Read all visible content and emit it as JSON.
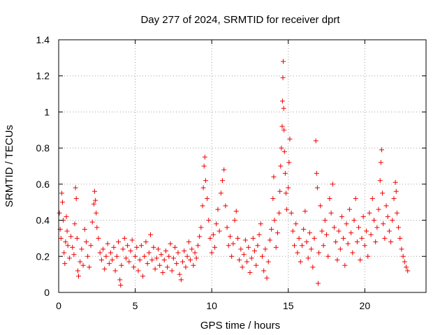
{
  "chart_data": {
    "type": "scatter",
    "title": "Day 277 of 2024, SRMTID for receiver dprt",
    "xlabel": "GPS time / hours",
    "ylabel": "SRMTID / TECUs",
    "xlim": [
      0,
      24
    ],
    "ylim": [
      0,
      1.4
    ],
    "xticks": [
      0,
      5,
      10,
      15,
      20
    ],
    "xtick_labels": [
      "0",
      "5",
      "10",
      "15",
      "20"
    ],
    "yticks": [
      0,
      0.2,
      0.4,
      0.6,
      0.8,
      1,
      1.2,
      1.4
    ],
    "ytick_labels": [
      "0",
      "0.2",
      "0.4",
      "0.6",
      "0.8",
      "1",
      "1.2",
      "1.4"
    ],
    "grid": true,
    "marker": "+",
    "marker_color": "#ee0000",
    "series": [
      {
        "name": "SRMTID",
        "points": [
          [
            0.05,
            0.44
          ],
          [
            0.1,
            0.35
          ],
          [
            0.15,
            0.3
          ],
          [
            0.2,
            0.55
          ],
          [
            0.25,
            0.5
          ],
          [
            0.3,
            0.4
          ],
          [
            0.35,
            0.22
          ],
          [
            0.4,
            0.16
          ],
          [
            0.45,
            0.28
          ],
          [
            0.5,
            0.42
          ],
          [
            0.55,
            0.34
          ],
          [
            0.6,
            0.26
          ],
          [
            0.7,
            0.19
          ],
          [
            0.8,
            0.31
          ],
          [
            0.9,
            0.25
          ],
          [
            1.0,
            0.21
          ],
          [
            1.05,
            0.38
          ],
          [
            1.1,
            0.58
          ],
          [
            1.15,
            0.52
          ],
          [
            1.2,
            0.3
          ],
          [
            1.25,
            0.12
          ],
          [
            1.3,
            0.09
          ],
          [
            1.4,
            0.17
          ],
          [
            1.5,
            0.24
          ],
          [
            1.6,
            0.15
          ],
          [
            1.7,
            0.35
          ],
          [
            1.8,
            0.28
          ],
          [
            1.9,
            0.2
          ],
          [
            2.0,
            0.14
          ],
          [
            2.1,
            0.26
          ],
          [
            2.2,
            0.39
          ],
          [
            2.3,
            0.49
          ],
          [
            2.35,
            0.56
          ],
          [
            2.4,
            0.51
          ],
          [
            2.45,
            0.44
          ],
          [
            2.5,
            0.36
          ],
          [
            2.6,
            0.3
          ],
          [
            2.7,
            0.22
          ],
          [
            2.8,
            0.18
          ],
          [
            2.9,
            0.24
          ],
          [
            3.0,
            0.13
          ],
          [
            3.1,
            0.2
          ],
          [
            3.2,
            0.27
          ],
          [
            3.3,
            0.16
          ],
          [
            3.4,
            0.22
          ],
          [
            3.5,
            0.18
          ],
          [
            3.6,
            0.25
          ],
          [
            3.7,
            0.12
          ],
          [
            3.8,
            0.2
          ],
          [
            3.9,
            0.28
          ],
          [
            4.0,
            0.07
          ],
          [
            4.05,
            0.04
          ],
          [
            4.1,
            0.15
          ],
          [
            4.2,
            0.24
          ],
          [
            4.3,
            0.3
          ],
          [
            4.4,
            0.19
          ],
          [
            4.5,
            0.26
          ],
          [
            4.6,
            0.17
          ],
          [
            4.7,
            0.23
          ],
          [
            4.8,
            0.29
          ],
          [
            4.9,
            0.14
          ],
          [
            5.0,
            0.2
          ],
          [
            5.1,
            0.25
          ],
          [
            5.2,
            0.12
          ],
          [
            5.3,
            0.18
          ],
          [
            5.4,
            0.26
          ],
          [
            5.5,
            0.09
          ],
          [
            5.6,
            0.2
          ],
          [
            5.7,
            0.28
          ],
          [
            5.8,
            0.16
          ],
          [
            5.9,
            0.22
          ],
          [
            6.0,
            0.32
          ],
          [
            6.1,
            0.18
          ],
          [
            6.2,
            0.25
          ],
          [
            6.3,
            0.13
          ],
          [
            6.4,
            0.19
          ],
          [
            6.5,
            0.24
          ],
          [
            6.6,
            0.15
          ],
          [
            6.7,
            0.21
          ],
          [
            6.8,
            0.11
          ],
          [
            6.9,
            0.18
          ],
          [
            7.0,
            0.23
          ],
          [
            7.1,
            0.14
          ],
          [
            7.2,
            0.2
          ],
          [
            7.3,
            0.27
          ],
          [
            7.4,
            0.12
          ],
          [
            7.5,
            0.19
          ],
          [
            7.6,
            0.25
          ],
          [
            7.7,
            0.16
          ],
          [
            7.8,
            0.22
          ],
          [
            7.9,
            0.1
          ],
          [
            8.0,
            0.07
          ],
          [
            8.1,
            0.17
          ],
          [
            8.2,
            0.23
          ],
          [
            8.3,
            0.14
          ],
          [
            8.4,
            0.2
          ],
          [
            8.5,
            0.28
          ],
          [
            8.6,
            0.18
          ],
          [
            8.7,
            0.24
          ],
          [
            8.8,
            0.15
          ],
          [
            8.9,
            0.22
          ],
          [
            9.0,
            0.19
          ],
          [
            9.1,
            0.26
          ],
          [
            9.2,
            0.31
          ],
          [
            9.3,
            0.36
          ],
          [
            9.4,
            0.48
          ],
          [
            9.45,
            0.58
          ],
          [
            9.5,
            0.7
          ],
          [
            9.55,
            0.75
          ],
          [
            9.6,
            0.62
          ],
          [
            9.7,
            0.52
          ],
          [
            9.8,
            0.4
          ],
          [
            9.9,
            0.3
          ],
          [
            10.0,
            0.22
          ],
          [
            10.1,
            0.32
          ],
          [
            10.2,
            0.25
          ],
          [
            10.3,
            0.38
          ],
          [
            10.4,
            0.46
          ],
          [
            10.5,
            0.34
          ],
          [
            10.6,
            0.55
          ],
          [
            10.7,
            0.62
          ],
          [
            10.8,
            0.68
          ],
          [
            10.9,
            0.48
          ],
          [
            11.0,
            0.36
          ],
          [
            11.1,
            0.26
          ],
          [
            11.2,
            0.31
          ],
          [
            11.3,
            0.2
          ],
          [
            11.4,
            0.27
          ],
          [
            11.5,
            0.4
          ],
          [
            11.6,
            0.45
          ],
          [
            11.7,
            0.3
          ],
          [
            11.8,
            0.18
          ],
          [
            11.9,
            0.24
          ],
          [
            12.0,
            0.14
          ],
          [
            12.1,
            0.21
          ],
          [
            12.2,
            0.29
          ],
          [
            12.3,
            0.17
          ],
          [
            12.4,
            0.25
          ],
          [
            12.5,
            0.11
          ],
          [
            12.6,
            0.19
          ],
          [
            12.7,
            0.3
          ],
          [
            12.8,
            0.23
          ],
          [
            12.9,
            0.15
          ],
          [
            13.0,
            0.26
          ],
          [
            13.1,
            0.32
          ],
          [
            13.2,
            0.38
          ],
          [
            13.3,
            0.2
          ],
          [
            13.4,
            0.12
          ],
          [
            13.5,
            0.24
          ],
          [
            13.6,
            0.08
          ],
          [
            13.7,
            0.17
          ],
          [
            13.8,
            0.29
          ],
          [
            13.9,
            0.35
          ],
          [
            14.0,
            0.52
          ],
          [
            14.05,
            0.64
          ],
          [
            14.1,
            0.4
          ],
          [
            14.2,
            0.25
          ],
          [
            14.3,
            0.33
          ],
          [
            14.4,
            0.44
          ],
          [
            14.45,
            0.56
          ],
          [
            14.5,
            0.7
          ],
          [
            14.55,
            0.8
          ],
          [
            14.6,
            0.92
          ],
          [
            14.62,
            1.06
          ],
          [
            14.65,
            1.19
          ],
          [
            14.67,
            1.28
          ],
          [
            14.7,
            1.02
          ],
          [
            14.72,
            0.9
          ],
          [
            14.75,
            0.78
          ],
          [
            14.8,
            0.66
          ],
          [
            14.85,
            0.55
          ],
          [
            14.9,
            0.46
          ],
          [
            15.0,
            0.58
          ],
          [
            15.05,
            0.72
          ],
          [
            15.1,
            0.85
          ],
          [
            15.2,
            0.44
          ],
          [
            15.3,
            0.34
          ],
          [
            15.4,
            0.26
          ],
          [
            15.5,
            0.38
          ],
          [
            15.6,
            0.22
          ],
          [
            15.7,
            0.3
          ],
          [
            15.8,
            0.17
          ],
          [
            15.9,
            0.26
          ],
          [
            16.0,
            0.35
          ],
          [
            16.1,
            0.45
          ],
          [
            16.2,
            0.28
          ],
          [
            16.3,
            0.19
          ],
          [
            16.4,
            0.33
          ],
          [
            16.5,
            0.24
          ],
          [
            16.6,
            0.14
          ],
          [
            16.7,
            0.3
          ],
          [
            16.8,
            0.84
          ],
          [
            16.85,
            0.66
          ],
          [
            16.9,
            0.58
          ],
          [
            16.95,
            0.05
          ],
          [
            17.0,
            0.22
          ],
          [
            17.1,
            0.48
          ],
          [
            17.2,
            0.34
          ],
          [
            17.3,
            0.26
          ],
          [
            17.4,
            0.4
          ],
          [
            17.5,
            0.32
          ],
          [
            17.6,
            0.2
          ],
          [
            17.7,
            0.52
          ],
          [
            17.8,
            0.44
          ],
          [
            17.9,
            0.6
          ],
          [
            18.0,
            0.36
          ],
          [
            18.1,
            0.28
          ],
          [
            18.2,
            0.18
          ],
          [
            18.3,
            0.34
          ],
          [
            18.4,
            0.24
          ],
          [
            18.5,
            0.42
          ],
          [
            18.6,
            0.3
          ],
          [
            18.7,
            0.15
          ],
          [
            18.8,
            0.38
          ],
          [
            18.9,
            0.27
          ],
          [
            19.0,
            0.46
          ],
          [
            19.1,
            0.33
          ],
          [
            19.2,
            0.22
          ],
          [
            19.3,
            0.4
          ],
          [
            19.4,
            0.52
          ],
          [
            19.5,
            0.28
          ],
          [
            19.6,
            0.36
          ],
          [
            19.7,
            0.18
          ],
          [
            19.8,
            0.3
          ],
          [
            19.9,
            0.42
          ],
          [
            20.0,
            0.26
          ],
          [
            20.1,
            0.34
          ],
          [
            20.2,
            0.2
          ],
          [
            20.3,
            0.44
          ],
          [
            20.4,
            0.32
          ],
          [
            20.5,
            0.52
          ],
          [
            20.6,
            0.4
          ],
          [
            20.7,
            0.28
          ],
          [
            20.8,
            0.36
          ],
          [
            20.9,
            0.46
          ],
          [
            21.0,
            0.62
          ],
          [
            21.05,
            0.72
          ],
          [
            21.1,
            0.79
          ],
          [
            21.15,
            0.55
          ],
          [
            21.2,
            0.38
          ],
          [
            21.3,
            0.3
          ],
          [
            21.4,
            0.48
          ],
          [
            21.5,
            0.42
          ],
          [
            21.6,
            0.34
          ],
          [
            21.7,
            0.28
          ],
          [
            21.8,
            0.4
          ],
          [
            21.9,
            0.52
          ],
          [
            22.0,
            0.61
          ],
          [
            22.05,
            0.56
          ],
          [
            22.1,
            0.44
          ],
          [
            22.2,
            0.36
          ],
          [
            22.3,
            0.3
          ],
          [
            22.4,
            0.24
          ],
          [
            22.5,
            0.2
          ],
          [
            22.6,
            0.17
          ],
          [
            22.7,
            0.14
          ],
          [
            22.8,
            0.12
          ]
        ]
      }
    ]
  }
}
